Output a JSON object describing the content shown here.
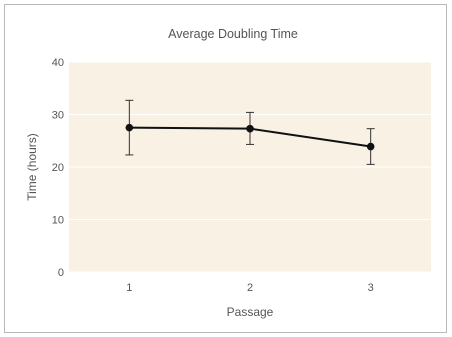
{
  "chart_data": {
    "type": "line",
    "title": "Average Doubling Time",
    "xlabel": "Passage",
    "ylabel": "Time (hours)",
    "categories": [
      "1",
      "2",
      "3"
    ],
    "values": [
      27.5,
      27.3,
      23.9
    ],
    "error_high": [
      32.7,
      30.4,
      27.3
    ],
    "error_low": [
      22.3,
      24.3,
      20.5
    ],
    "ylim": [
      0,
      40
    ],
    "yticks": [
      "0",
      "10",
      "20",
      "30",
      "40"
    ],
    "grid": true,
    "legend": "none",
    "colors": {
      "plot_background": "#f8f1e4",
      "gridline": "#ffffff",
      "line": "#111111",
      "error_bar": "#333333",
      "text": "#555555",
      "frame": "#b9b9b9"
    }
  }
}
